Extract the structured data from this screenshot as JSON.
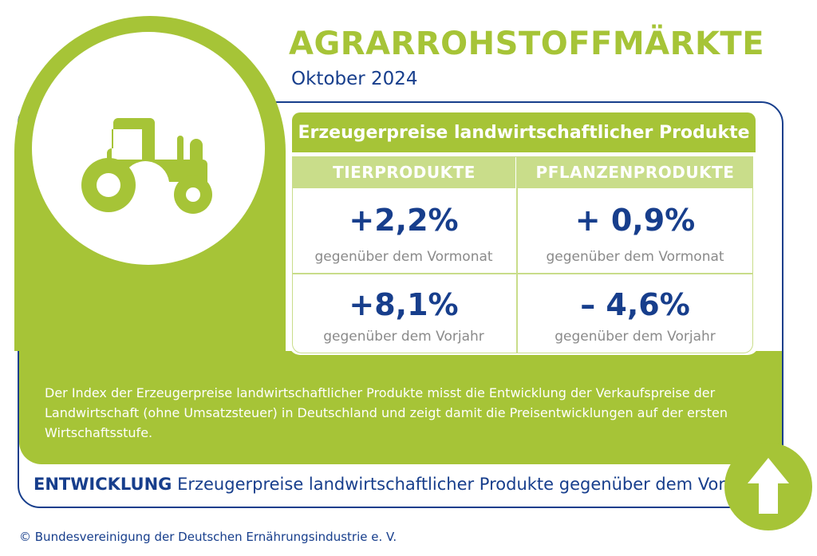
{
  "header": {
    "title": "AGRARROHSTOFFMÄRKTE",
    "subtitle": "Oktober 2024"
  },
  "icon": {
    "name": "tractor-icon",
    "color": "#a6c437"
  },
  "panel": {
    "title": "Erzeugerpreise landwirtschaftlicher Produkte",
    "columns": [
      "TIERPRODUKTE",
      "PFLANZENPRODUKTE"
    ],
    "rows": [
      {
        "values": [
          "+2,2%",
          "+ 0,9%"
        ],
        "label": "gegenüber dem Vormonat"
      },
      {
        "values": [
          "+8,1%",
          "– 4,6%"
        ],
        "label": "gegenüber dem Vorjahr"
      }
    ]
  },
  "description": "Der Index der Erzeugerpreise landwirtschaftlicher Produkte misst die Entwicklung der Verkaufspreise der Landwirtschaft (ohne Umsatzsteuer) in Deutschland und zeigt damit die Preisentwicklungen auf der ersten Wirtschaftsstufe.",
  "footer": {
    "trend_label_bold": "ENTWICKLUNG",
    "trend_label_text": " Erzeugerpreise landwirtschaftlicher Produkte gegenüber dem Vorjahr:",
    "trend_icon": "arrow-up-icon",
    "copyright": "© Bundesvereinigung der Deutschen Ernährungsindustrie e. V."
  },
  "colors": {
    "green": "#a6c437",
    "light_green": "#c9dd8a",
    "navy": "#173e8c",
    "grey": "#8a8a8a"
  }
}
